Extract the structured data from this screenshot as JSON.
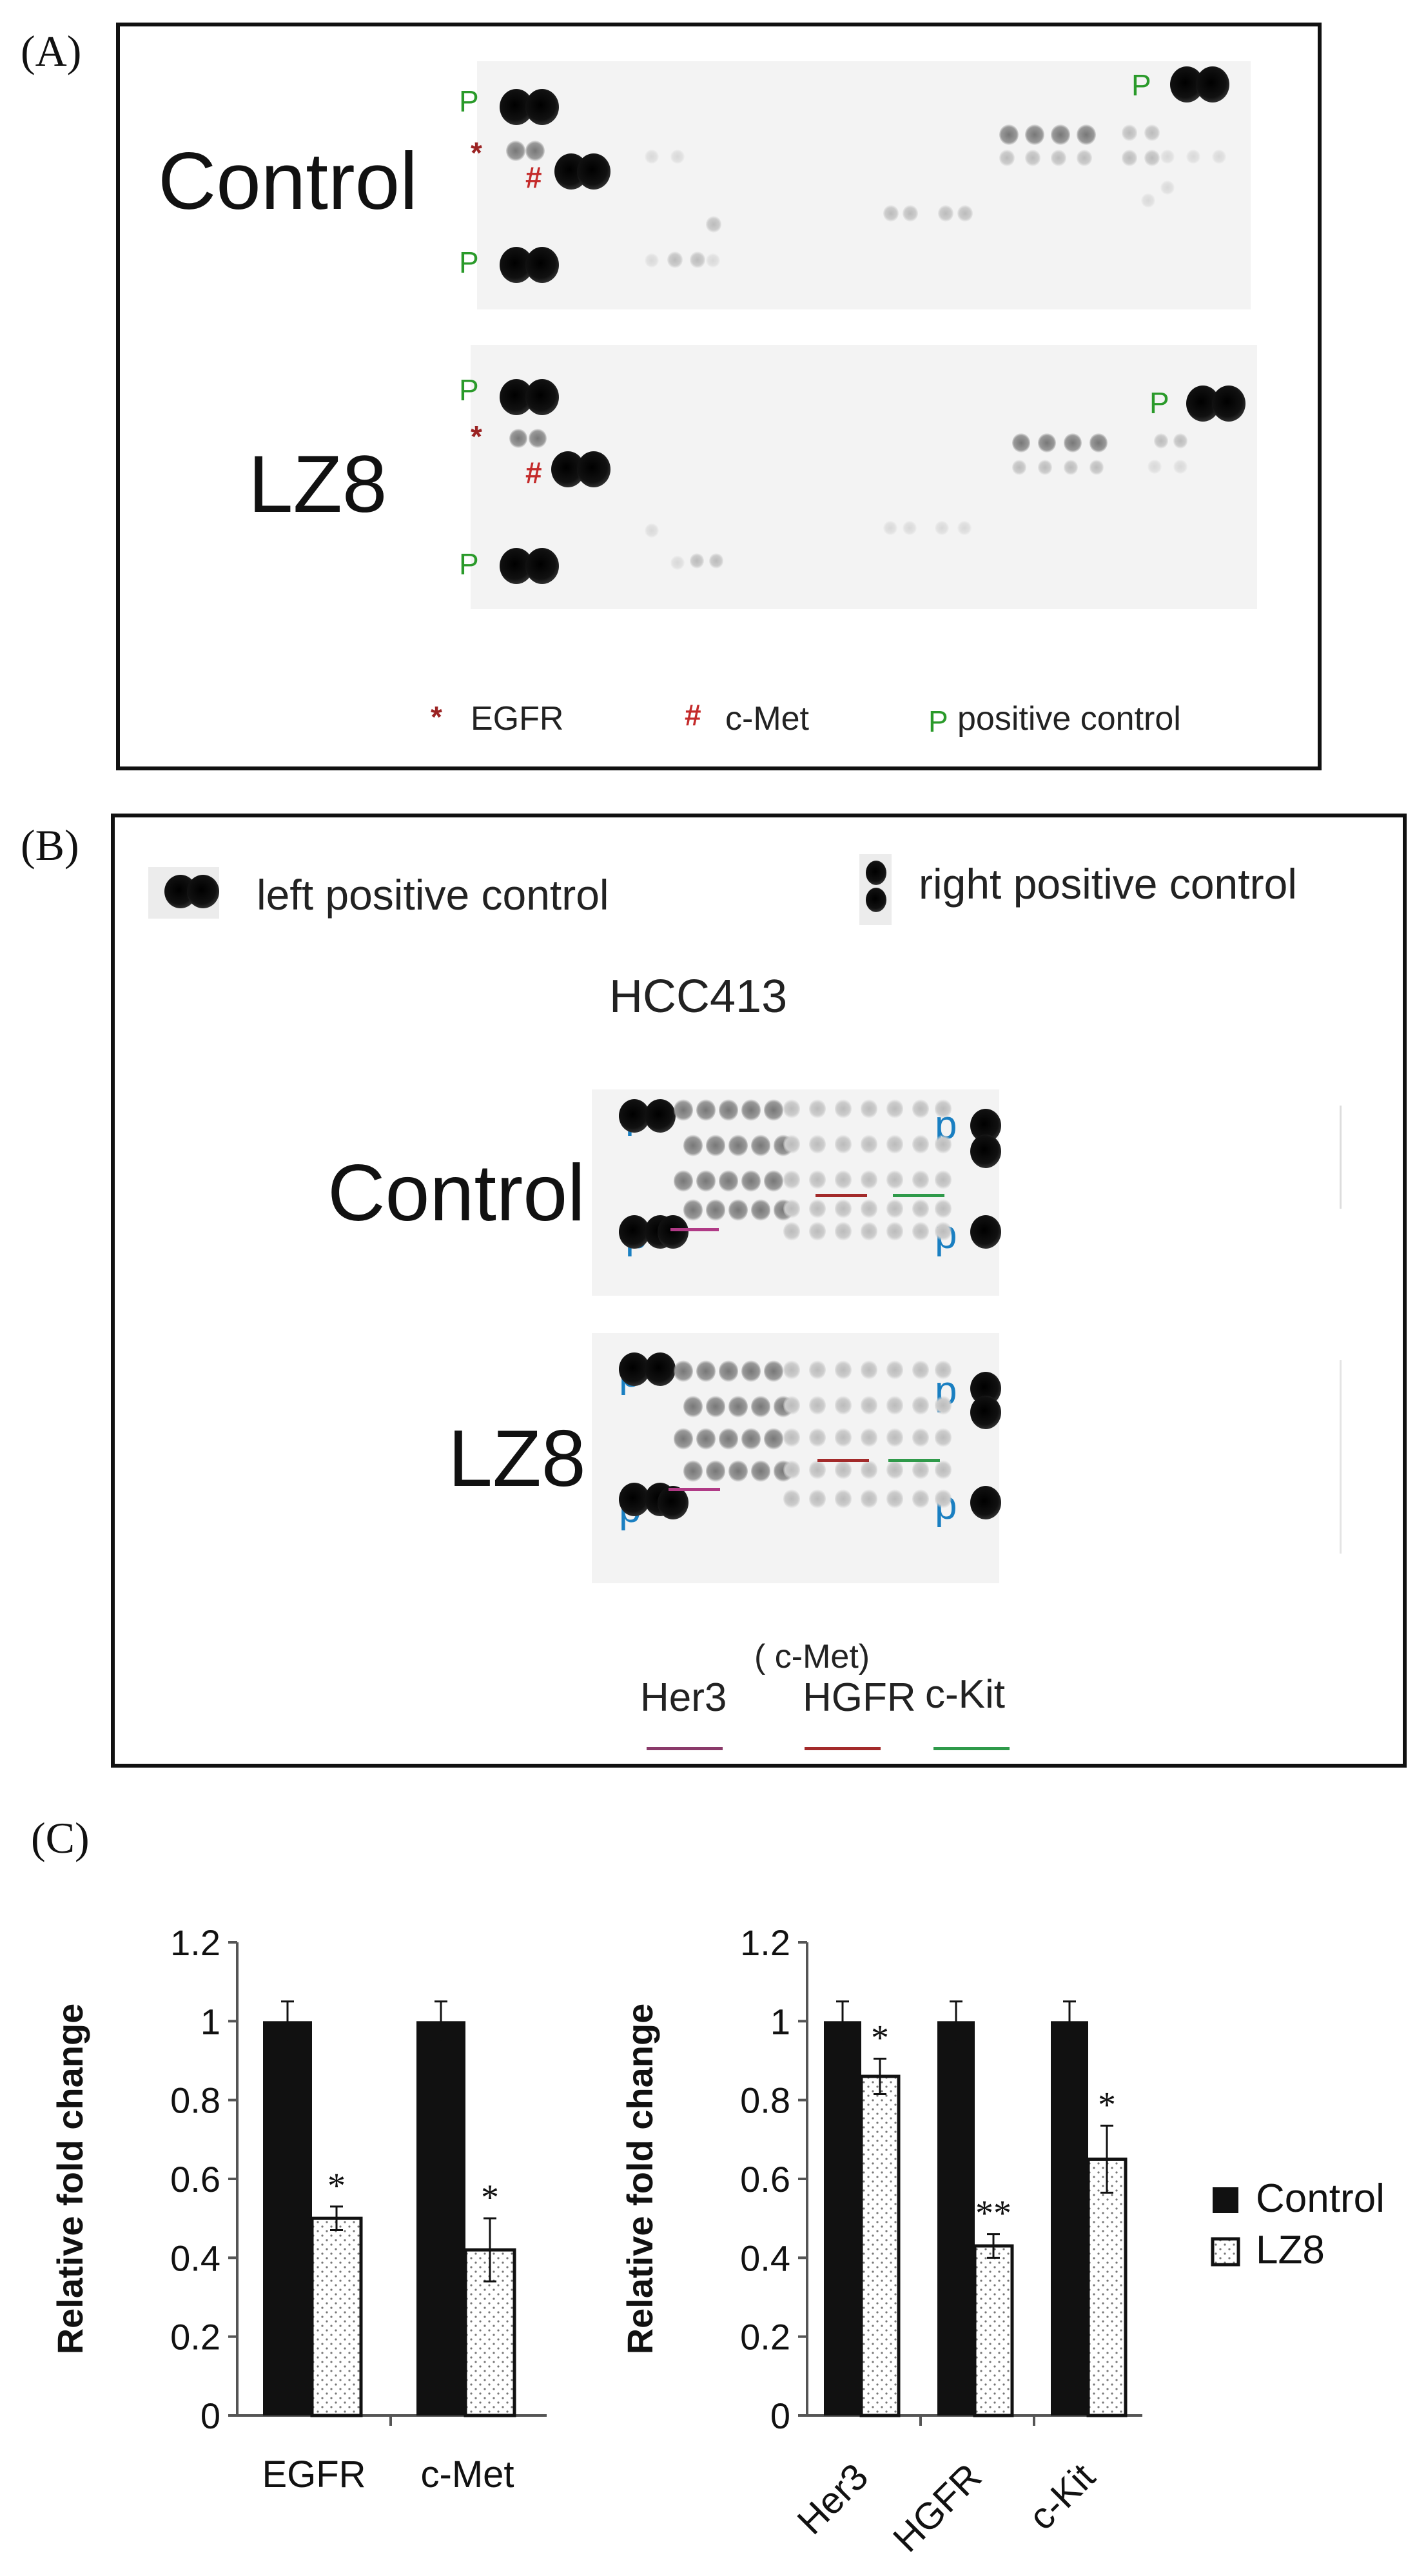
{
  "panel_a": {
    "letter": "(A)",
    "row_labels": {
      "control": "Control",
      "lz8": "LZ8"
    },
    "markers": {
      "positive": "P",
      "egfr": "*",
      "cmet": "#"
    },
    "legend": {
      "egfr_symbol": "*",
      "egfr_label": "EGFR",
      "cmet_symbol": "#",
      "cmet_label": "c-Met",
      "pos_symbol": "P",
      "pos_label": "positive control"
    },
    "colors": {
      "egfr": "#9b2323",
      "cmet": "#c42a2a",
      "positive": "#2a9a2a"
    }
  },
  "panel_b": {
    "letter": "(B)",
    "legend_left": "left positive control",
    "legend_right": "right positive control",
    "cell_line": "HCC413",
    "row_labels": {
      "control": "Control",
      "lz8": "LZ8"
    },
    "marker": "p",
    "bottom_legend": {
      "her3": "Her3",
      "cmet_paren": "( c-Met)",
      "hgfr": "HGFR",
      "ckit": "c-Kit"
    },
    "colors": {
      "her3": "#b03a86",
      "hgfr": "#a32a2a",
      "ckit": "#2f9a4a",
      "marker": "#1a7fc1"
    }
  },
  "panel_c": {
    "letter": "(C)"
  },
  "chart_data": [
    {
      "type": "bar",
      "categories": [
        "EGFR",
        "c-Met"
      ],
      "series": [
        {
          "name": "Control",
          "values": [
            1.0,
            1.0
          ],
          "errors": [
            0.05,
            0.05
          ],
          "color": "#111111",
          "pattern": "solid"
        },
        {
          "name": "LZ8",
          "values": [
            0.5,
            0.42
          ],
          "errors": [
            0.03,
            0.08
          ],
          "color": "#ffffff",
          "pattern": "dotted"
        }
      ],
      "significance": [
        "*",
        "*"
      ],
      "ylabel": "Relative fold change",
      "ylim": [
        0,
        1.2
      ],
      "yticks": [
        "0",
        "0.2",
        "0.4",
        "0.6",
        "0.8",
        "1",
        "1.2"
      ],
      "xlabel_rotation": 0
    },
    {
      "type": "bar",
      "categories": [
        "Her3",
        "HGFR",
        "c-Kit"
      ],
      "series": [
        {
          "name": "Control",
          "values": [
            1.0,
            1.0,
            1.0
          ],
          "errors": [
            0.05,
            0.05,
            0.05
          ],
          "color": "#111111",
          "pattern": "solid"
        },
        {
          "name": "LZ8",
          "values": [
            0.86,
            0.43,
            0.65
          ],
          "errors": [
            0.045,
            0.03,
            0.085
          ],
          "color": "#ffffff",
          "pattern": "dotted"
        }
      ],
      "significance": [
        "*",
        "**",
        "*"
      ],
      "ylabel": "Relative fold change",
      "ylim": [
        0,
        1.2
      ],
      "yticks": [
        "0",
        "0.2",
        "0.4",
        "0.6",
        "0.8",
        "1",
        "1.2"
      ],
      "xlabel_rotation": -45
    }
  ],
  "chart_legend": {
    "control": "Control",
    "lz8": "LZ8"
  }
}
